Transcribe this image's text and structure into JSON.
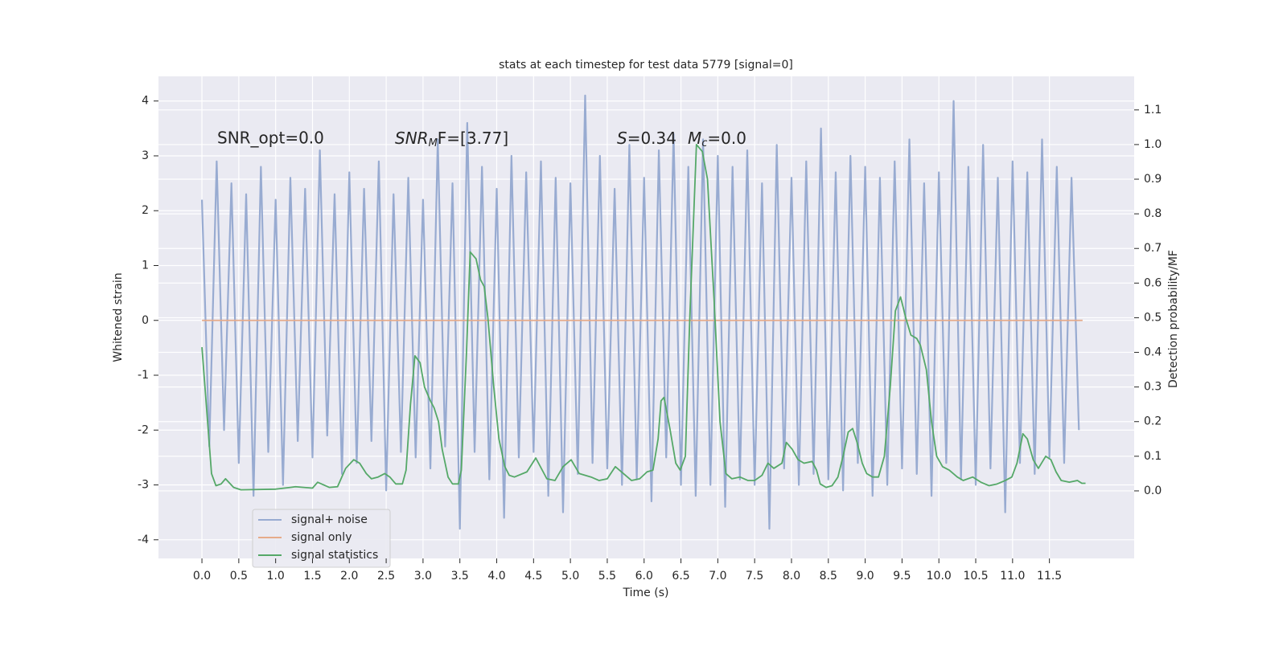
{
  "chart_data": {
    "type": "line",
    "title": "stats at each timestep for test data 5779 [signal=0]",
    "xlabel": "Time (s)",
    "ylabel": "Whitened strain",
    "y2label": "Detection probability/MF",
    "xlim": [
      -0.59,
      12.65
    ],
    "ylim": [
      -4.34,
      4.45
    ],
    "y2lim": [
      -0.195,
      1.197
    ],
    "grid": true,
    "legend_position": "lower left",
    "xticks": [
      {
        "value": 0,
        "label": "0.0"
      },
      0.5,
      {
        "value": 1,
        "label": "1.0"
      },
      1.5,
      {
        "value": 2,
        "label": "2.0"
      },
      2.5,
      {
        "value": 3,
        "label": "3.0"
      },
      3.5,
      {
        "value": 4,
        "label": "4.0"
      },
      4.5,
      {
        "value": 5,
        "label": "5.0"
      },
      5.5,
      {
        "value": 6,
        "label": "6.0"
      },
      6.5,
      {
        "value": 7,
        "label": "7.0"
      },
      7.5,
      {
        "value": 8,
        "label": "8.0"
      },
      8.5,
      {
        "value": 9,
        "label": "9.0"
      },
      9.5,
      {
        "value": 10,
        "label": "10.0"
      },
      10.5,
      {
        "value": 11,
        "label": "11.0"
      },
      11.5
    ],
    "yticks": [
      -4,
      -3,
      -2,
      -1,
      0,
      1,
      2,
      3,
      4
    ],
    "y2ticks": [
      {
        "value": 0,
        "label": "0.0"
      },
      0.1,
      0.2,
      0.3,
      0.4,
      0.5,
      0.6,
      0.7,
      0.8,
      0.9,
      {
        "value": 1,
        "label": "1.0"
      },
      1.1
    ],
    "annotations": [
      {
        "text": "SNR_opt=0.0"
      },
      {
        "parts": [
          "SNR",
          "M",
          "F=[3.77]"
        ]
      },
      {
        "parts": [
          "S",
          "=0.34",
          "M",
          "c",
          "=0.0"
        ]
      }
    ],
    "series": [
      {
        "name": "signal+ noise",
        "color": "#98abd1",
        "x": [
          0,
          0.1,
          0.2,
          0.3,
          0.4,
          0.5,
          0.6,
          0.7,
          0.8,
          0.9,
          1,
          1.1,
          1.2,
          1.3,
          1.4,
          1.5,
          1.6,
          1.7,
          1.8,
          1.9,
          2,
          2.1,
          2.2,
          2.3,
          2.4,
          2.5,
          2.6,
          2.7,
          2.8,
          2.9,
          3,
          3.1,
          3.2,
          3.3,
          3.4,
          3.5,
          3.6,
          3.7,
          3.8,
          3.9,
          4,
          4.1,
          4.2,
          4.3,
          4.4,
          4.5,
          4.6,
          4.7,
          4.8,
          4.9,
          5,
          5.1,
          5.2,
          5.3,
          5.4,
          5.5,
          5.6,
          5.7,
          5.8,
          5.9,
          6,
          6.1,
          6.2,
          6.3,
          6.4,
          6.5,
          6.6,
          6.7,
          6.8,
          6.9,
          7,
          7.1,
          7.2,
          7.3,
          7.4,
          7.5,
          7.6,
          7.7,
          7.8,
          7.9,
          8,
          8.1,
          8.2,
          8.3,
          8.4,
          8.5,
          8.6,
          8.7,
          8.8,
          8.9,
          9,
          9.1,
          9.2,
          9.3,
          9.4,
          9.5,
          9.6,
          9.7,
          9.8,
          9.9,
          10,
          10.1,
          10.2,
          10.3,
          10.4,
          10.5,
          10.6,
          10.7,
          10.8,
          10.9,
          11,
          11.1,
          11.2,
          11.3,
          11.4,
          11.5,
          11.6,
          11.7,
          11.8,
          11.9
        ],
        "values": [
          2.2,
          -2.3,
          2.9,
          -2.0,
          2.5,
          -2.6,
          2.3,
          -3.2,
          2.8,
          -2.4,
          2.2,
          -3.0,
          2.6,
          -2.2,
          2.4,
          -2.5,
          3.1,
          -2.1,
          2.3,
          -2.8,
          2.7,
          -2.6,
          2.4,
          -2.2,
          2.9,
          -3.1,
          2.3,
          -2.4,
          2.6,
          -2.5,
          2.2,
          -2.7,
          3.3,
          -2.3,
          2.5,
          -3.8,
          3.6,
          -2.4,
          2.8,
          -2.9,
          2.4,
          -3.6,
          3.0,
          -2.5,
          2.7,
          -2.4,
          2.9,
          -3.2,
          2.6,
          -3.5,
          2.5,
          -2.8,
          4.1,
          -2.6,
          3.0,
          -2.7,
          2.4,
          -3.0,
          3.2,
          -2.9,
          2.6,
          -3.3,
          3.1,
          -2.5,
          3.4,
          -3.0,
          2.8,
          -3.2,
          3.3,
          -3.0,
          3.0,
          -3.4,
          2.8,
          -2.9,
          3.1,
          -3.0,
          2.5,
          -3.8,
          3.2,
          -2.7,
          2.6,
          -3.0,
          2.9,
          -2.8,
          3.5,
          -2.9,
          2.7,
          -3.1,
          3.0,
          -2.6,
          2.8,
          -3.2,
          2.6,
          -3.0,
          2.9,
          -2.7,
          3.3,
          -2.8,
          2.5,
          -3.2,
          2.7,
          -2.6,
          4.0,
          -2.9,
          2.8,
          -3.0,
          3.2,
          -2.7,
          2.6,
          -3.5,
          2.9,
          -2.6,
          2.7,
          -2.8,
          3.3,
          -2.5,
          2.8,
          -2.6,
          2.6,
          -2.0
        ]
      },
      {
        "name": "signal only",
        "color": "#e6ab8a",
        "x": [
          0,
          11.95
        ],
        "values": [
          0,
          0
        ]
      },
      {
        "name": "signal statistics",
        "color": "#55a868",
        "axis": "y2",
        "x": [
          0,
          0.13,
          0.19,
          0.26,
          0.32,
          0.43,
          0.53,
          1.0,
          1.2,
          1.27,
          1.5,
          1.57,
          1.73,
          1.84,
          1.95,
          2.06,
          2.14,
          2.23,
          2.3,
          2.39,
          2.48,
          2.55,
          2.63,
          2.72,
          2.77,
          2.83,
          2.89,
          2.96,
          3.02,
          3.1,
          3.15,
          3.21,
          3.26,
          3.34,
          3.4,
          3.48,
          3.52,
          3.59,
          3.64,
          3.72,
          3.78,
          3.83,
          3.88,
          3.96,
          4.03,
          4.11,
          4.17,
          4.24,
          4.41,
          4.53,
          4.68,
          4.79,
          4.9,
          5.01,
          5.12,
          5.28,
          5.39,
          5.5,
          5.61,
          5.72,
          5.83,
          5.94,
          6.04,
          6.12,
          6.19,
          6.23,
          6.27,
          6.35,
          6.43,
          6.49,
          6.56,
          6.62,
          6.71,
          6.79,
          6.86,
          6.95,
          7.03,
          7.11,
          7.19,
          7.3,
          7.41,
          7.5,
          7.6,
          7.68,
          7.76,
          7.87,
          7.93,
          8.01,
          8.09,
          8.17,
          8.28,
          8.34,
          8.39,
          8.47,
          8.55,
          8.63,
          8.7,
          8.77,
          8.83,
          8.89,
          8.96,
          9.02,
          9.1,
          9.18,
          9.26,
          9.34,
          9.41,
          9.48,
          9.55,
          9.62,
          9.7,
          9.75,
          9.83,
          9.9,
          9.97,
          10.05,
          10.14,
          10.25,
          10.33,
          10.46,
          10.57,
          10.68,
          10.79,
          10.9,
          10.99,
          11.06,
          11.14,
          11.2,
          11.28,
          11.35,
          11.45,
          11.52,
          11.59,
          11.66,
          11.77,
          11.88,
          11.94,
          11.99
        ],
        "values": [
          0.415,
          0.05,
          0.015,
          0.02,
          0.035,
          0.01,
          0.003,
          0.005,
          0.01,
          0.012,
          0.008,
          0.025,
          0.01,
          0.012,
          0.065,
          0.09,
          0.08,
          0.05,
          0.035,
          0.04,
          0.05,
          0.04,
          0.02,
          0.02,
          0.06,
          0.25,
          0.39,
          0.37,
          0.3,
          0.26,
          0.24,
          0.2,
          0.12,
          0.04,
          0.02,
          0.02,
          0.06,
          0.4,
          0.69,
          0.67,
          0.61,
          0.59,
          0.5,
          0.3,
          0.15,
          0.07,
          0.045,
          0.04,
          0.055,
          0.095,
          0.035,
          0.03,
          0.07,
          0.09,
          0.05,
          0.04,
          0.03,
          0.035,
          0.07,
          0.05,
          0.03,
          0.035,
          0.055,
          0.06,
          0.15,
          0.26,
          0.27,
          0.18,
          0.08,
          0.06,
          0.1,
          0.5,
          1.0,
          0.98,
          0.9,
          0.55,
          0.2,
          0.05,
          0.035,
          0.04,
          0.03,
          0.03,
          0.045,
          0.08,
          0.065,
          0.08,
          0.14,
          0.12,
          0.09,
          0.08,
          0.085,
          0.06,
          0.02,
          0.01,
          0.015,
          0.04,
          0.1,
          0.17,
          0.18,
          0.14,
          0.08,
          0.05,
          0.04,
          0.04,
          0.1,
          0.3,
          0.52,
          0.56,
          0.5,
          0.45,
          0.44,
          0.42,
          0.35,
          0.2,
          0.1,
          0.07,
          0.06,
          0.04,
          0.03,
          0.04,
          0.025,
          0.015,
          0.02,
          0.03,
          0.04,
          0.08,
          0.165,
          0.15,
          0.09,
          0.065,
          0.1,
          0.09,
          0.055,
          0.03,
          0.025,
          0.03,
          0.022,
          0.022
        ]
      }
    ]
  }
}
